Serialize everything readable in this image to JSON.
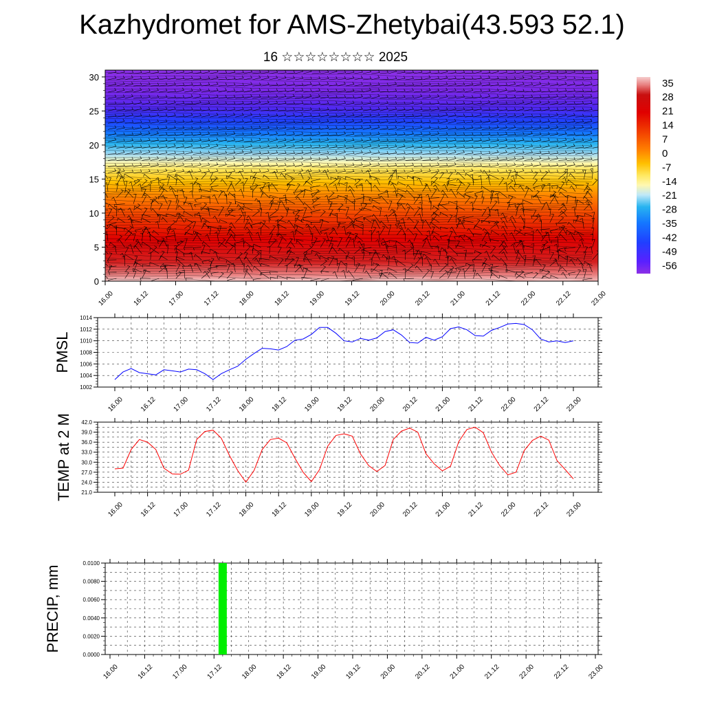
{
  "title": "Kazhydromet for AMS-Zhetybai(43.593 52.1)",
  "subtitle": "16 ☆☆☆☆☆☆☆☆ 2025",
  "time_labels": [
    "16.00",
    "16.12",
    "17.00",
    "17.12",
    "18.00",
    "18.12",
    "19.00",
    "19.12",
    "20.00",
    "20.12",
    "21.00",
    "21.12",
    "22.00",
    "22.12",
    "23.00"
  ],
  "colors": {
    "pmsl_line": "#0000ff",
    "temp_line": "#ff0000",
    "precip_bar": "#00ee00"
  },
  "chart_data": [
    {
      "type": "heatmap",
      "title": "",
      "xlabel": "",
      "ylabel": "",
      "y_ticks": [
        "0",
        "5",
        "10",
        "15",
        "20",
        "25",
        "30"
      ],
      "ylim": [
        0,
        31
      ],
      "colorbar": {
        "labels": [
          "35",
          "28",
          "21",
          "14",
          "7",
          "0",
          "-7",
          "-14",
          "-21",
          "-28",
          "-35",
          "-42",
          "-49",
          "-56"
        ],
        "range": [
          -60,
          38
        ]
      },
      "overlay": "wind barbs"
    },
    {
      "type": "line",
      "ylabel": "PMSL",
      "y_ticks": [
        "1002",
        "1004",
        "1006",
        "1008",
        "1010",
        "1012",
        "1014"
      ],
      "ylim": [
        1002,
        1014
      ],
      "x": [
        0,
        3,
        6,
        9,
        12,
        15,
        18,
        21,
        24,
        27,
        30,
        33,
        36,
        39,
        42,
        45,
        48,
        51,
        54,
        57,
        60,
        63,
        66,
        69,
        72,
        75,
        78,
        81,
        84,
        87,
        90,
        93,
        96,
        99,
        102,
        105,
        108,
        111,
        114,
        117,
        120,
        123,
        126,
        129,
        132,
        135,
        138,
        141,
        144,
        147,
        150,
        153,
        156,
        159,
        162,
        165,
        168
      ],
      "series": [
        {
          "values": [
            1003.3,
            1004.6,
            1005.2,
            1004.5,
            1004.3,
            1004.1,
            1005.0,
            1004.8,
            1004.6,
            1005.1,
            1005.0,
            1004.3,
            1003.3,
            1004.3,
            1005.0,
            1005.6,
            1006.8,
            1007.8,
            1008.7,
            1008.6,
            1008.4,
            1009.0,
            1010.1,
            1010.3,
            1011.1,
            1012.3,
            1012.3,
            1011.3,
            1010.0,
            1009.8,
            1010.4,
            1010.1,
            1010.5,
            1011.6,
            1011.9,
            1011.0,
            1009.7,
            1009.6,
            1010.6,
            1010.1,
            1010.7,
            1012.1,
            1012.4,
            1011.9,
            1010.9,
            1010.8,
            1011.8,
            1012.3,
            1012.9,
            1013.0,
            1012.8,
            1011.9,
            1010.3,
            1009.8,
            1010.0,
            1009.7,
            1010.0
          ]
        }
      ]
    },
    {
      "type": "line",
      "ylabel": "TEMP at 2 M",
      "y_ticks": [
        "21.0",
        "24.0",
        "27.0",
        "30.0",
        "33.0",
        "36.0",
        "39.0",
        "42.0"
      ],
      "ylim": [
        21,
        42
      ],
      "x": [
        0,
        3,
        6,
        9,
        12,
        15,
        18,
        21,
        24,
        27,
        30,
        33,
        36,
        39,
        42,
        45,
        48,
        51,
        54,
        57,
        60,
        63,
        66,
        69,
        72,
        75,
        78,
        81,
        84,
        87,
        90,
        93,
        96,
        99,
        102,
        105,
        108,
        111,
        114,
        117,
        120,
        123,
        126,
        129,
        132,
        135,
        138,
        141,
        144,
        147,
        150,
        153,
        156,
        159,
        162,
        165,
        168
      ],
      "series": [
        {
          "values": [
            28.0,
            28.2,
            33.8,
            36.8,
            36.0,
            33.8,
            28.2,
            26.5,
            26.4,
            27.6,
            36.8,
            39.2,
            39.6,
            37.2,
            32.0,
            27.5,
            24.0,
            27.5,
            33.8,
            36.8,
            37.2,
            35.8,
            31.2,
            27.0,
            24.2,
            27.8,
            34.8,
            38.0,
            38.5,
            37.8,
            32.5,
            29.0,
            27.2,
            29.0,
            36.8,
            39.3,
            40.2,
            39.0,
            32.5,
            29.5,
            27.4,
            28.8,
            36.2,
            39.8,
            40.5,
            38.8,
            33.0,
            29.0,
            26.2,
            27.0,
            33.5,
            36.5,
            37.8,
            36.6,
            30.5,
            27.8,
            25.0
          ]
        }
      ]
    },
    {
      "type": "bar",
      "ylabel": "PRECIP, mm",
      "y_ticks": [
        "0.0000",
        "0.0020",
        "0.0040",
        "0.0060",
        "0.0080",
        "0.0100"
      ],
      "ylim": [
        0,
        0.01
      ],
      "x": [
        39
      ],
      "values": [
        0.01
      ]
    }
  ]
}
